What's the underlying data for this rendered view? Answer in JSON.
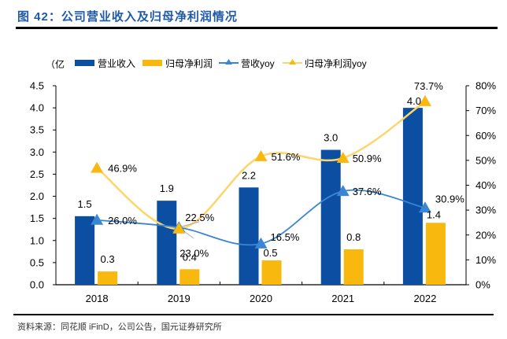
{
  "figure": {
    "title": "图 42：公司营业收入及归母净利润情况",
    "source": "资料来源：同花顺 iFinD，公司公告，国元证券研究所"
  },
  "chart_data": {
    "type": "bar",
    "title": "公司营业收入及归母净利润情况",
    "categories": [
      "2018",
      "2019",
      "2020",
      "2021",
      "2022"
    ],
    "left_axis": {
      "label": "（亿",
      "ylim": [
        0,
        4.5
      ],
      "ticks": [
        "0.0",
        "0.5",
        "1.0",
        "1.5",
        "2.0",
        "2.5",
        "3.0",
        "3.5",
        "4.0",
        "4.5"
      ]
    },
    "right_axis": {
      "label": "",
      "ylim": [
        0,
        80
      ],
      "ticks": [
        "0%",
        "10%",
        "20%",
        "30%",
        "40%",
        "50%",
        "60%",
        "70%",
        "80%"
      ]
    },
    "series": [
      {
        "name": "营业收入",
        "type": "bar",
        "axis": "left",
        "color": "#0b4ea2",
        "values": [
          1.55,
          1.9,
          2.2,
          3.05,
          4.0
        ],
        "labels": [
          "1.5",
          "1.9",
          "2.2",
          "3.0",
          "4.0"
        ]
      },
      {
        "name": "归母净利润",
        "type": "bar",
        "axis": "left",
        "color": "#f8b80e",
        "values": [
          0.3,
          0.35,
          0.55,
          0.8,
          1.4
        ],
        "labels": [
          "0.3",
          "0.4",
          "0.5",
          "0.8",
          "1.4"
        ]
      },
      {
        "name": "营收yoy",
        "type": "line",
        "axis": "right",
        "color": "#3a86d4",
        "values": [
          26.0,
          23.0,
          16.5,
          37.6,
          30.9
        ],
        "labels": [
          "26.0%",
          "23.0%",
          "16.5%",
          "37.6%",
          "30.9%"
        ]
      },
      {
        "name": "归母净利润yoy",
        "type": "line",
        "axis": "right",
        "color": "#fdd56a",
        "marker_color": "#f8b80e",
        "values": [
          46.9,
          22.5,
          51.6,
          50.9,
          73.7
        ],
        "labels": [
          "46.9%",
          "22.5%",
          "51.6%",
          "50.9%",
          "73.7%"
        ]
      }
    ],
    "legend": {
      "placement": "top",
      "items": [
        "营业收入",
        "归母净利润",
        "营收yoy",
        "归母净利润yoy"
      ]
    },
    "grid": false
  }
}
